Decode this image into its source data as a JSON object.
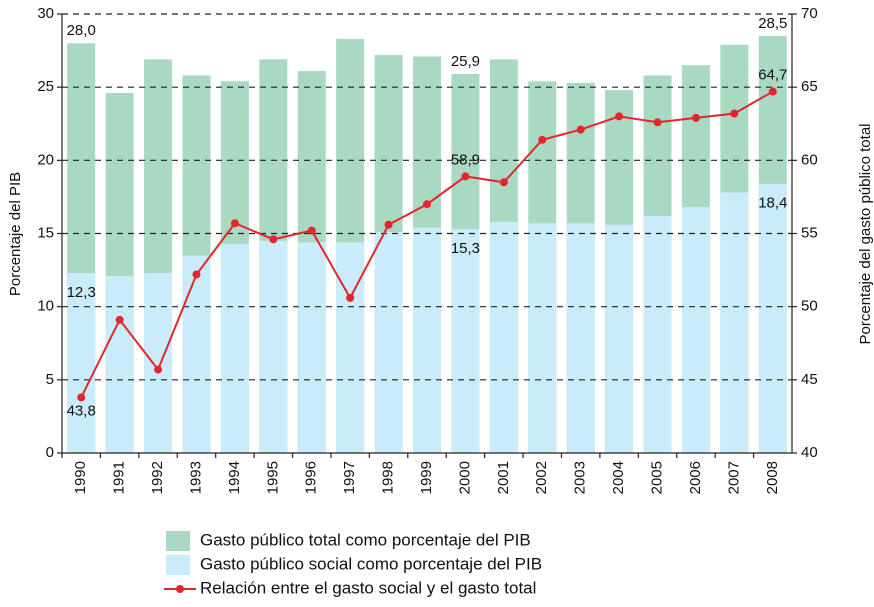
{
  "chart_data": {
    "type": "bar",
    "y_label": "Porcentaje del PIB",
    "y2_label": "Porcentaje del gasto público total",
    "categories": [
      "1990",
      "1991",
      "1992",
      "1993",
      "1994",
      "1995",
      "1996",
      "1997",
      "1998",
      "1999",
      "2000",
      "2001",
      "2002",
      "2003",
      "2004",
      "2005",
      "2006",
      "2007",
      "2008"
    ],
    "series": [
      {
        "name": "Gasto público total como porcentaje del PIB",
        "type": "bar",
        "color": "#a9d9c2",
        "values": [
          28.0,
          24.6,
          26.9,
          25.8,
          25.4,
          26.9,
          26.1,
          28.3,
          27.2,
          27.1,
          25.9,
          26.9,
          25.4,
          25.3,
          24.8,
          25.8,
          26.5,
          27.9,
          28.5
        ],
        "value_labels": [
          "28,0",
          null,
          null,
          null,
          null,
          null,
          null,
          null,
          null,
          null,
          "25,9",
          null,
          null,
          null,
          null,
          null,
          null,
          null,
          "28,5"
        ]
      },
      {
        "name": "Gasto público social como porcentaje del PIB",
        "type": "bar",
        "color": "#c9ebfa",
        "values": [
          12.3,
          12.1,
          12.3,
          13.5,
          14.3,
          14.5,
          14.4,
          14.4,
          15.1,
          15.4,
          15.3,
          15.8,
          15.7,
          15.7,
          15.6,
          16.2,
          16.8,
          17.8,
          18.4
        ],
        "value_labels": [
          "12,3",
          null,
          null,
          null,
          null,
          null,
          null,
          null,
          null,
          null,
          "15,3",
          null,
          null,
          null,
          null,
          null,
          null,
          null,
          "18,4"
        ]
      },
      {
        "name": "Relación entre el gasto social y el gasto total",
        "type": "line",
        "axis": "y2",
        "color": "#e3262c",
        "values": [
          43.8,
          49.1,
          45.7,
          52.2,
          55.7,
          54.6,
          55.2,
          50.6,
          55.6,
          57.0,
          58.9,
          58.5,
          61.4,
          62.1,
          63.0,
          62.6,
          62.9,
          63.2,
          64.7
        ],
        "value_labels": [
          "43,8",
          null,
          null,
          null,
          null,
          null,
          null,
          null,
          null,
          null,
          "58,9",
          null,
          null,
          null,
          null,
          null,
          null,
          null,
          "64,7"
        ]
      }
    ],
    "ylim": [
      0,
      30
    ],
    "yticks": [
      0,
      5,
      10,
      15,
      20,
      25,
      30
    ],
    "y2lim": [
      40,
      70
    ],
    "y2ticks": [
      40,
      45,
      50,
      55,
      60,
      65,
      70
    ],
    "grid": true
  }
}
